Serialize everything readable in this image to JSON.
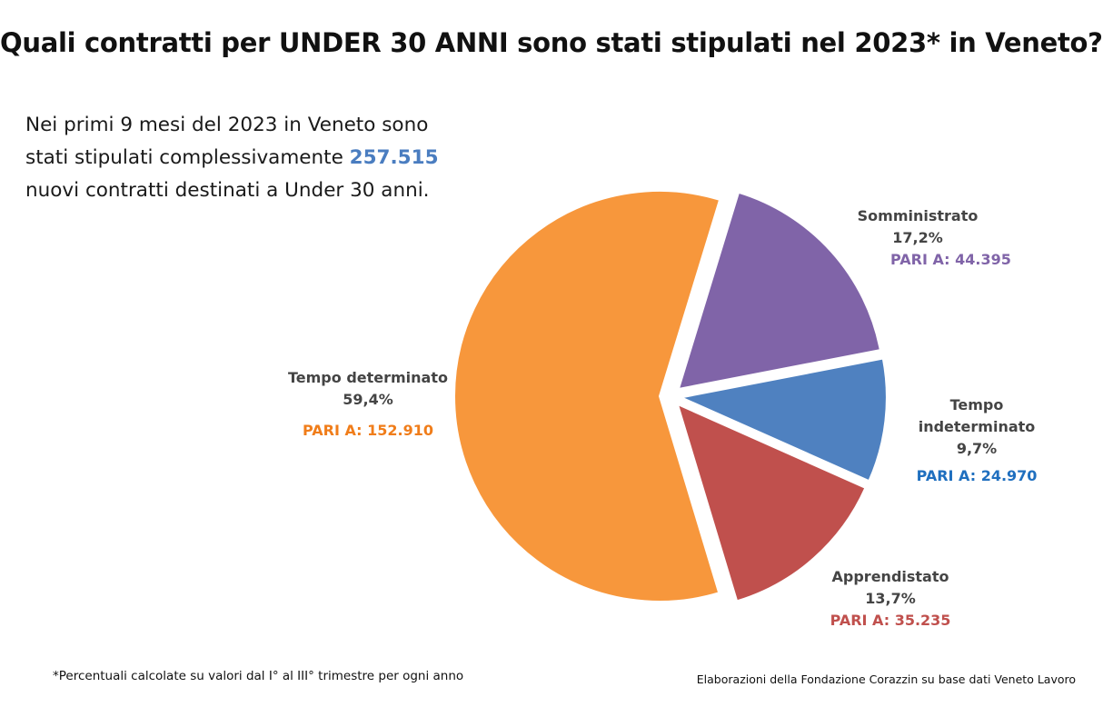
{
  "title": "Quali contratti per UNDER 30 ANNI sono stati stipulati nel 2023* in Veneto?",
  "intro": {
    "line1": "Nei primi 9 mesi del 2023 in Veneto sono",
    "line2_prefix": "stati stipulati complessivamente ",
    "total": "257.515",
    "line3": "nuovi contratti destinati a Under 30 anni."
  },
  "footnote": "*Percentuali calcolate su valori dal I° al III° trimestre per ogni anno",
  "source": "Elaborazioni della Fondazione Corazzin su base dati Veneto Lavoro",
  "chart_data": {
    "type": "pie",
    "total": 257515,
    "slices": [
      {
        "label": "Somministrato",
        "percent_label": "17,2%",
        "pari": "PARI A: 44.395",
        "value": 44395,
        "percent": 17.2,
        "color": "#8064a8",
        "text_color": "#8064a8"
      },
      {
        "label": "Tempo indeterminato",
        "percent_label": "9,7%",
        "pari": "PARI A: 24.970",
        "value": 24970,
        "percent": 9.7,
        "color": "#4f81c0",
        "text_color": "#1f6fbf"
      },
      {
        "label": "Apprendistato",
        "percent_label": "13,7%",
        "pari": "PARI A: 35.235",
        "value": 35235,
        "percent": 13.7,
        "color": "#c0504d",
        "text_color": "#c0504d"
      },
      {
        "label": "Tempo determinato",
        "percent_label": "59,4%",
        "pari": "PARI A: 152.910",
        "value": 152910,
        "percent": 59.4,
        "color": "#f7973c",
        "text_color": "#f07d1a"
      }
    ]
  }
}
